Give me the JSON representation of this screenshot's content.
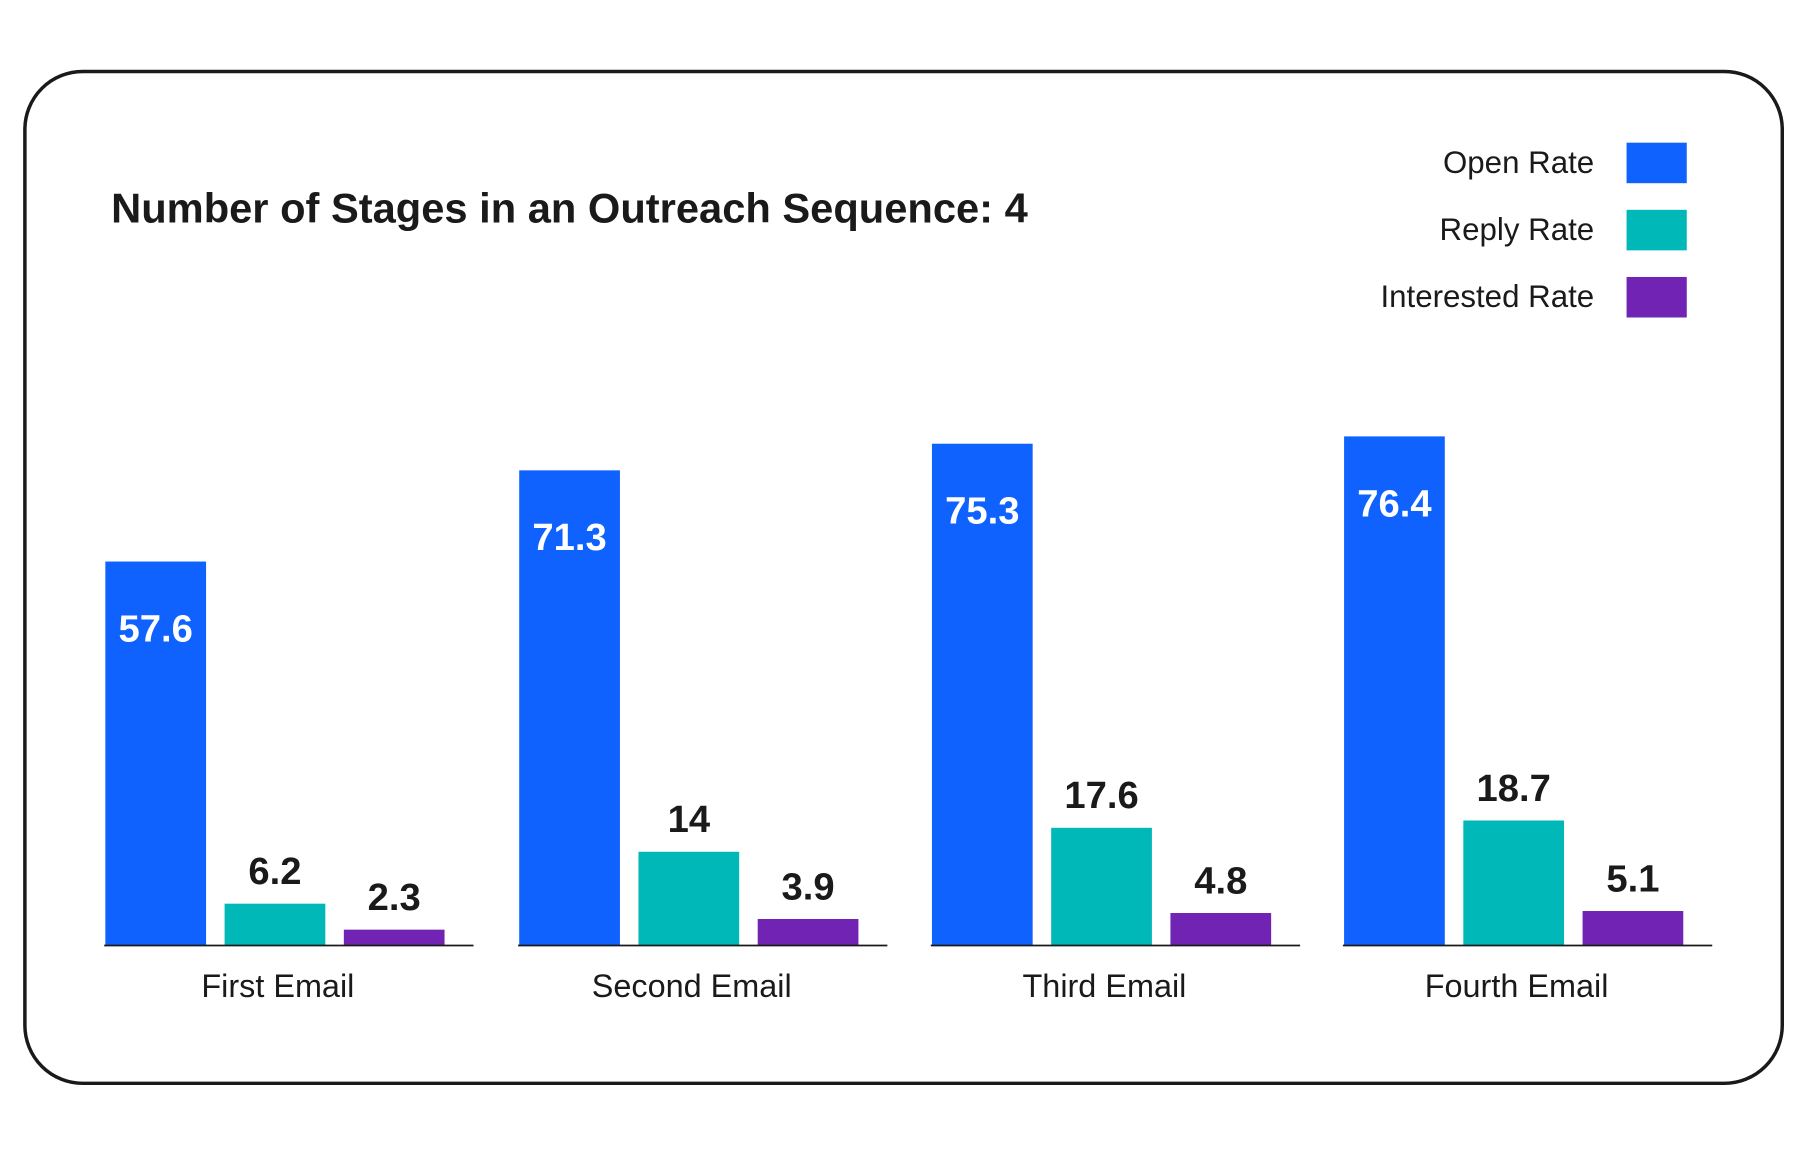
{
  "chart_data": {
    "type": "bar",
    "title": "Number of Stages in an Outreach Sequence: 4",
    "categories": [
      "First Email",
      "Second Email",
      "Third Email",
      "Fourth Email"
    ],
    "series": [
      {
        "name": "Open Rate",
        "color": "#0f62fe",
        "values": [
          57.6,
          71.3,
          75.3,
          76.4
        ]
      },
      {
        "name": "Reply Rate",
        "color": "#00b8b8",
        "values": [
          6.2,
          14,
          17.6,
          18.7
        ]
      },
      {
        "name": "Interested Rate",
        "color": "#7124b4",
        "values": [
          2.3,
          3.9,
          4.8,
          5.1
        ]
      }
    ],
    "xlabel": "",
    "ylabel": "",
    "ylim": [
      0,
      80
    ],
    "grid": false,
    "legend": "top-right",
    "data_labels": true
  }
}
